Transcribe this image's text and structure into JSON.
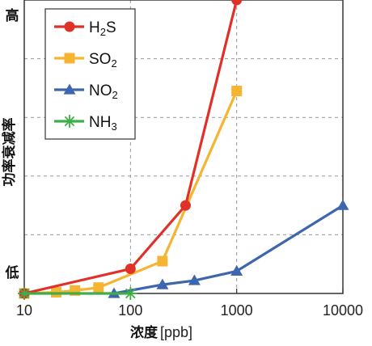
{
  "chart_data": {
    "type": "line",
    "xlabel": "浓度",
    "xunit": "[ppb]",
    "ylabel": "功率衰减率",
    "y_high_label": "高",
    "y_low_label": "低",
    "x_scale": "log",
    "xlim": [
      10,
      10000
    ],
    "ylim": [
      0,
      5
    ],
    "x_ticks": [
      "10",
      "100",
      "1000",
      "10000"
    ],
    "grid": "horizontal-dashed",
    "legend_position": "top-left",
    "series": [
      {
        "name": "H2S",
        "legend_base": "H",
        "legend_sub1": "2",
        "legend_rest": "S",
        "legend_sub2": "",
        "color": "#e03128",
        "marker": "circle",
        "x": [
          10,
          100,
          330,
          1000
        ],
        "y": [
          0.0,
          0.42,
          1.5,
          5.0
        ]
      },
      {
        "name": "SO2",
        "legend_base": "SO",
        "legend_sub1": "2",
        "legend_rest": "",
        "legend_sub2": "",
        "color": "#f5b431",
        "marker": "square",
        "x": [
          10,
          20,
          30,
          50,
          200,
          1000
        ],
        "y": [
          0.0,
          0.02,
          0.05,
          0.1,
          0.55,
          3.45
        ]
      },
      {
        "name": "NO2",
        "legend_base": "NO",
        "legend_sub1": "2",
        "legend_rest": "",
        "legend_sub2": "",
        "color": "#3d66ae",
        "marker": "triangle",
        "x": [
          70,
          200,
          400,
          1000,
          10000
        ],
        "y": [
          0.0,
          0.15,
          0.22,
          0.38,
          1.5
        ]
      },
      {
        "name": "NH3",
        "legend_base": "NH",
        "legend_sub1": "3",
        "legend_rest": "",
        "legend_sub2": "",
        "color": "#3fae49",
        "marker": "asterisk",
        "x": [
          10,
          100
        ],
        "y": [
          0.0,
          0.0
        ]
      }
    ]
  }
}
